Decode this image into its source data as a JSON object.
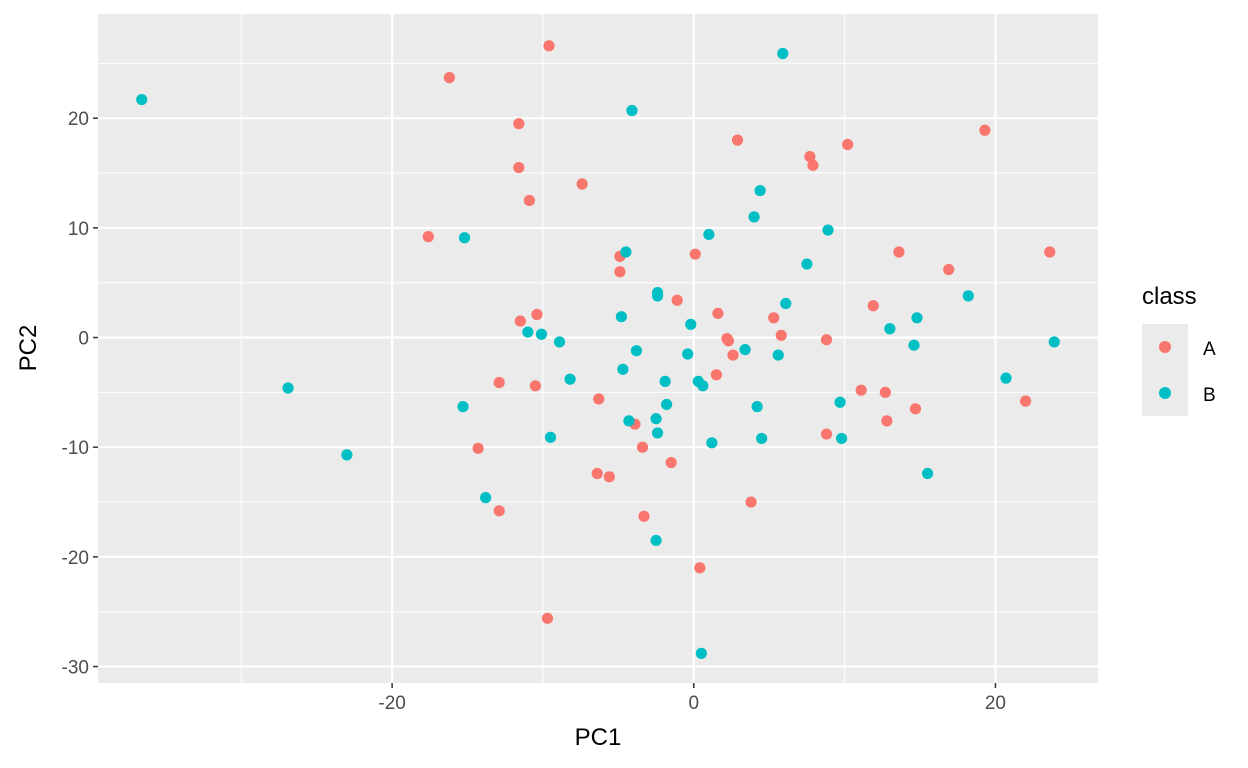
{
  "chart_data": {
    "type": "scatter",
    "xlabel": "PC1",
    "ylabel": "PC2",
    "xlim": [
      -39.5,
      26.8
    ],
    "ylim": [
      -31.5,
      29.5
    ],
    "x_ticks": [
      -20,
      0,
      20
    ],
    "y_ticks": [
      -30,
      -20,
      -10,
      0,
      10,
      20
    ],
    "x_tick_labels": [
      "-20",
      "0",
      "20"
    ],
    "y_tick_labels": [
      "-30",
      "-20",
      "-10",
      "0",
      "10",
      "20"
    ],
    "grid": true,
    "panel_background": "#ebebeb",
    "legend": {
      "title": "class",
      "position": "right",
      "entries": [
        {
          "label": "A",
          "color": "#f8766d"
        },
        {
          "label": "B",
          "color": "#00bfc4"
        }
      ]
    },
    "series": [
      {
        "name": "A",
        "color": "#f8766d",
        "points": [
          [
            -9.6,
            26.6
          ],
          [
            -16.2,
            23.7
          ],
          [
            -11.6,
            19.5
          ],
          [
            -11.6,
            15.5
          ],
          [
            -10.9,
            12.5
          ],
          [
            -7.4,
            14.0
          ],
          [
            -17.6,
            9.2
          ],
          [
            -4.9,
            7.4
          ],
          [
            -4.9,
            6.0
          ],
          [
            0.1,
            7.6
          ],
          [
            2.9,
            18.0
          ],
          [
            7.7,
            16.5
          ],
          [
            7.9,
            15.7
          ],
          [
            10.2,
            17.6
          ],
          [
            19.3,
            18.9
          ],
          [
            13.6,
            7.8
          ],
          [
            16.9,
            6.2
          ],
          [
            23.6,
            7.8
          ],
          [
            11.9,
            2.9
          ],
          [
            -1.1,
            3.4
          ],
          [
            -11.5,
            1.5
          ],
          [
            -10.4,
            2.1
          ],
          [
            1.6,
            2.2
          ],
          [
            5.3,
            1.8
          ],
          [
            5.8,
            0.2
          ],
          [
            2.2,
            -0.1
          ],
          [
            2.3,
            -0.3
          ],
          [
            2.6,
            -1.6
          ],
          [
            8.8,
            -0.2
          ],
          [
            -12.9,
            -4.1
          ],
          [
            -10.5,
            -4.4
          ],
          [
            -6.3,
            -5.6
          ],
          [
            1.5,
            -3.4
          ],
          [
            11.1,
            -4.8
          ],
          [
            12.7,
            -5.0
          ],
          [
            14.7,
            -6.5
          ],
          [
            12.8,
            -7.6
          ],
          [
            22.0,
            -5.8
          ],
          [
            -3.9,
            -7.9
          ],
          [
            -14.3,
            -10.1
          ],
          [
            -3.4,
            -10.0
          ],
          [
            -1.5,
            -11.4
          ],
          [
            8.8,
            -8.8
          ],
          [
            -6.4,
            -12.4
          ],
          [
            -5.6,
            -12.7
          ],
          [
            3.8,
            -15.0
          ],
          [
            -12.9,
            -15.8
          ],
          [
            -3.3,
            -16.3
          ],
          [
            0.4,
            -21.0
          ],
          [
            -9.7,
            -25.6
          ]
        ]
      },
      {
        "name": "B",
        "color": "#00bfc4",
        "points": [
          [
            -36.6,
            21.7
          ],
          [
            5.9,
            25.9
          ],
          [
            -4.1,
            20.7
          ],
          [
            4.4,
            13.4
          ],
          [
            4.0,
            11.0
          ],
          [
            -15.2,
            9.1
          ],
          [
            -4.5,
            7.8
          ],
          [
            1.0,
            9.4
          ],
          [
            8.9,
            9.8
          ],
          [
            7.5,
            6.7
          ],
          [
            -2.4,
            4.1
          ],
          [
            -2.4,
            3.8
          ],
          [
            6.1,
            3.1
          ],
          [
            18.2,
            3.8
          ],
          [
            14.8,
            1.8
          ],
          [
            13.0,
            0.8
          ],
          [
            -4.8,
            1.9
          ],
          [
            -0.2,
            1.2
          ],
          [
            -11.0,
            0.5
          ],
          [
            -10.1,
            0.3
          ],
          [
            -8.9,
            -0.4
          ],
          [
            -3.8,
            -1.2
          ],
          [
            3.4,
            -1.1
          ],
          [
            5.6,
            -1.6
          ],
          [
            -0.4,
            -1.5
          ],
          [
            14.6,
            -0.7
          ],
          [
            23.9,
            -0.4
          ],
          [
            -4.7,
            -2.9
          ],
          [
            -8.2,
            -3.8
          ],
          [
            -1.9,
            -4.0
          ],
          [
            0.3,
            -4.0
          ],
          [
            0.6,
            -4.4
          ],
          [
            20.7,
            -3.7
          ],
          [
            -26.9,
            -4.6
          ],
          [
            -15.3,
            -6.3
          ],
          [
            -1.8,
            -6.1
          ],
          [
            4.2,
            -6.3
          ],
          [
            9.7,
            -5.9
          ],
          [
            -4.3,
            -7.6
          ],
          [
            -2.5,
            -7.4
          ],
          [
            -2.4,
            -8.7
          ],
          [
            -9.5,
            -9.1
          ],
          [
            4.5,
            -9.2
          ],
          [
            1.2,
            -9.6
          ],
          [
            9.8,
            -9.2
          ],
          [
            -23.0,
            -10.7
          ],
          [
            15.5,
            -12.4
          ],
          [
            -13.8,
            -14.6
          ],
          [
            -2.5,
            -18.5
          ],
          [
            0.5,
            -28.8
          ]
        ]
      }
    ]
  }
}
